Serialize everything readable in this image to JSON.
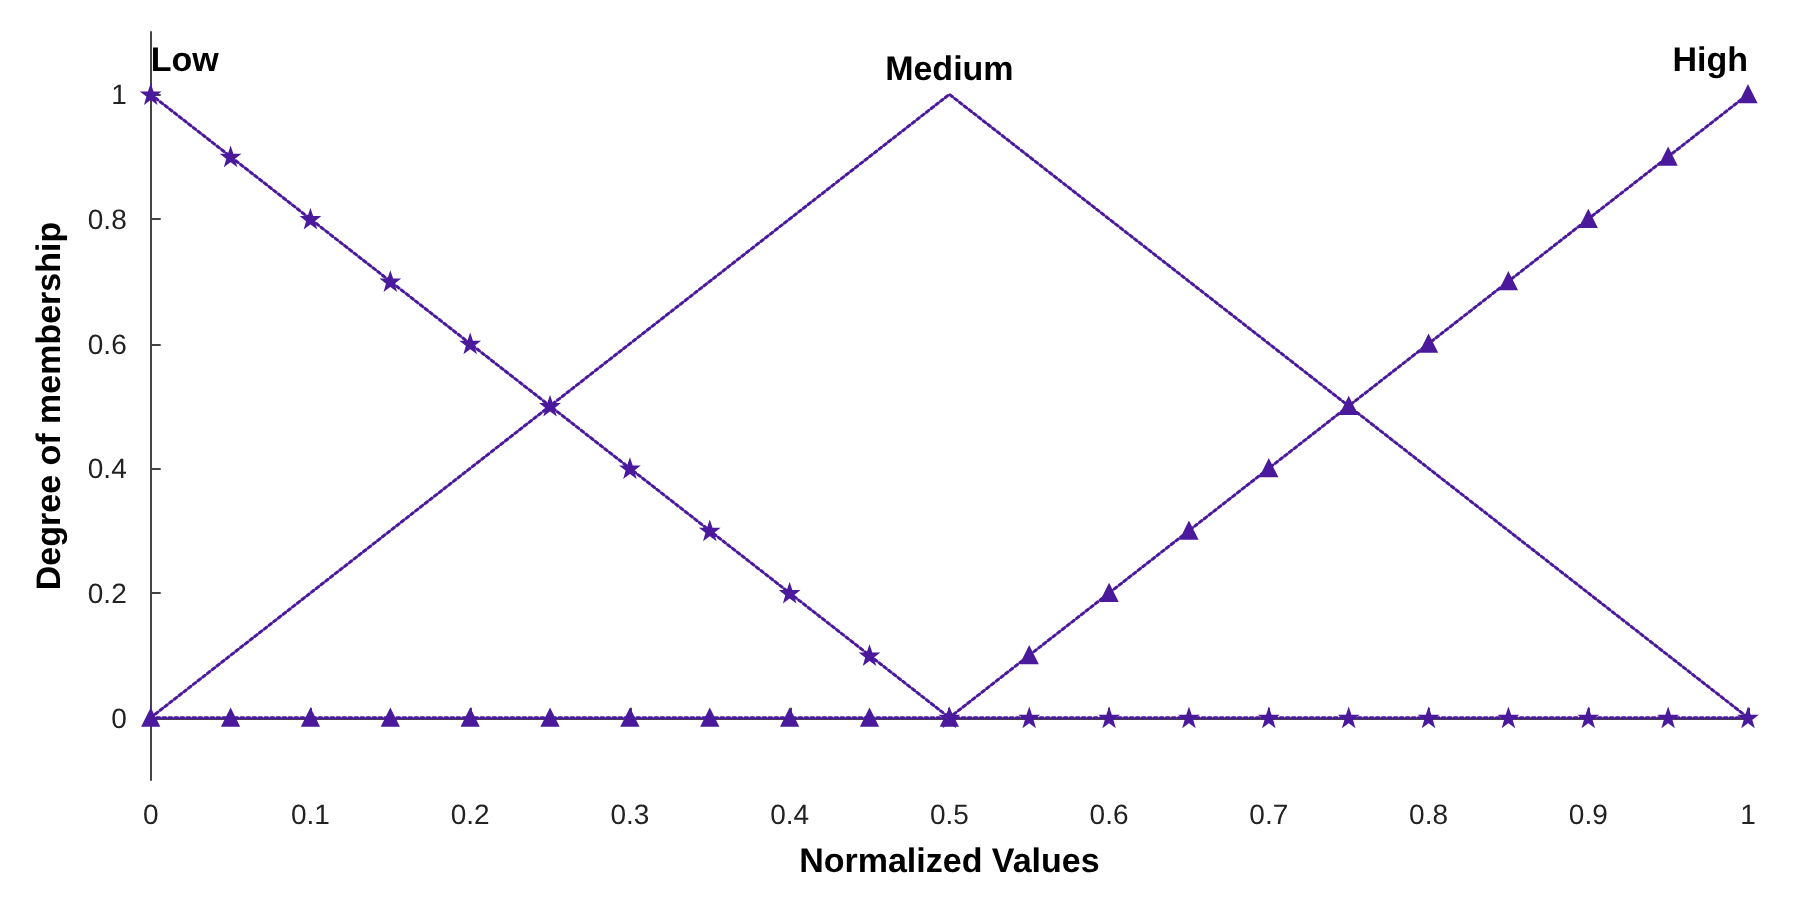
{
  "chart_data": {
    "type": "line",
    "xlabel": "Normalized Values",
    "ylabel": "Degree of membership",
    "x": [
      0,
      0.05,
      0.1,
      0.15,
      0.2,
      0.25,
      0.3,
      0.35,
      0.4,
      0.45,
      0.5,
      0.55,
      0.6,
      0.65,
      0.7,
      0.75,
      0.8,
      0.85,
      0.9,
      0.95,
      1
    ],
    "series": [
      {
        "name": "Low",
        "color": "#4b1a9c",
        "marker": "star",
        "values": [
          1,
          0.9,
          0.8,
          0.7,
          0.6,
          0.5,
          0.4,
          0.3,
          0.2,
          0.1,
          0,
          0,
          0,
          0,
          0,
          0,
          0,
          0,
          0,
          0,
          0
        ]
      },
      {
        "name": "Medium",
        "color": "#4b1a9c",
        "marker": "none",
        "values": [
          0,
          0.1,
          0.2,
          0.3,
          0.4,
          0.5,
          0.6,
          0.7,
          0.8,
          0.9,
          1,
          0.9,
          0.8,
          0.7,
          0.6,
          0.5,
          0.4,
          0.3,
          0.2,
          0.1,
          0
        ]
      },
      {
        "name": "High",
        "color": "#4b1a9c",
        "marker": "triangle",
        "values": [
          0,
          0,
          0,
          0,
          0,
          0,
          0,
          0,
          0,
          0,
          0,
          0.1,
          0.2,
          0.3,
          0.4,
          0.5,
          0.6,
          0.7,
          0.8,
          0.9,
          1
        ]
      }
    ],
    "xlim": [
      0,
      1
    ],
    "xticks": [
      0,
      0.1,
      0.2,
      0.3,
      0.4,
      0.5,
      0.6,
      0.7,
      0.8,
      0.9,
      1
    ],
    "ylim": [
      -0.1,
      1.1
    ],
    "yticks": [
      0,
      0.2,
      0.4,
      0.6,
      0.8,
      1
    ],
    "legend": false,
    "line_style": "dotted"
  }
}
